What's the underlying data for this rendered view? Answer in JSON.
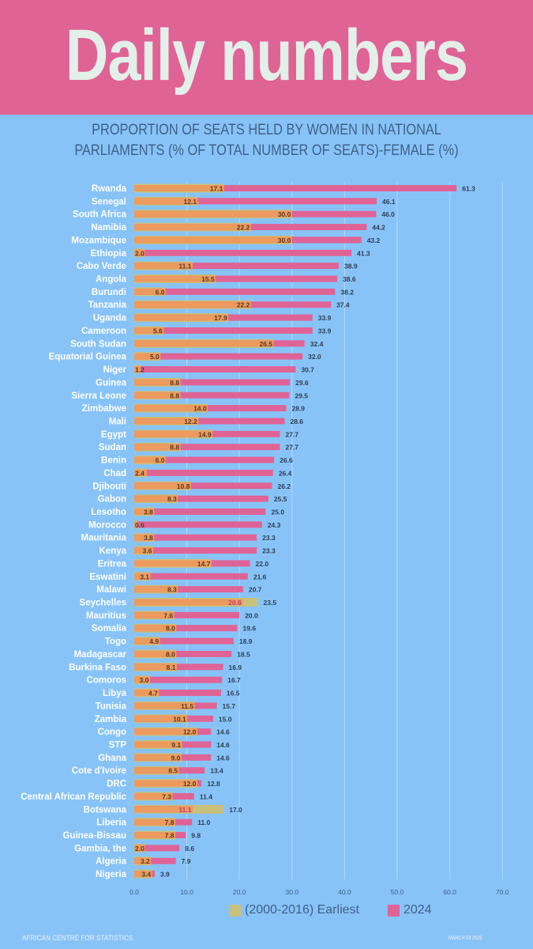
{
  "header": {
    "title": "Daily numbers"
  },
  "colors": {
    "header_bg": "#e06396",
    "background": "#88c3f7",
    "earliest": "#c9c07c",
    "overlap": "#ec9a5e",
    "latest": "#e06396",
    "label_dark": "#2d3e54",
    "country_label": "#ffffff"
  },
  "chart_data": {
    "type": "bar",
    "orientation": "horizontal",
    "title_lines": [
      "Proportion of seats held by women in national",
      "parliaments (% of total number of seats)-Female (%)"
    ],
    "xlabel": "",
    "ylabel": "",
    "xlim": [
      0,
      70
    ],
    "x_ticks": [
      "0.0",
      "10.0",
      "20.0",
      "30.0",
      "40.0",
      "50.0",
      "60.0",
      "70.0"
    ],
    "grid": true,
    "legend_position": "bottom",
    "categories": [
      "Rwanda",
      "Senegal",
      "South Africa",
      "Namibia",
      "Mozambique",
      "Ethiopia",
      "Cabo Verde",
      "Angola",
      "Burundi",
      "Tanzania",
      "Uganda",
      "Cameroon",
      "South Sudan",
      "Equatorial Guinea",
      "Niger",
      "Guinea",
      "Sierra Leone",
      "Zimbabwe",
      "Mali",
      "Egypt",
      "Sudan",
      "Benin",
      "Chad",
      "Djibouti",
      "Gabon",
      "Lesotho",
      "Morocco",
      "Mauritania",
      "Kenya",
      "Eritrea",
      "Eswatini",
      "Malawi",
      "Seychelles",
      "Mauritius",
      "Somalia",
      "Togo",
      "Madagascar",
      "Burkina Faso",
      "Comoros",
      "Libya",
      "Tunisia",
      "Zambia",
      "Congo",
      "STP",
      "Ghana",
      "Cote d'Ivoire",
      "DRC",
      "Central African Republic",
      "Botswana",
      "Liberia",
      "Guinea-Bissau",
      "Gambia, the",
      "Algeria",
      "Nigeria"
    ],
    "series": [
      {
        "name": "(2000-2016) Earliest",
        "values": [
          17.1,
          12.1,
          30.0,
          22.2,
          30.0,
          2.0,
          11.1,
          15.5,
          6.0,
          22.2,
          17.9,
          5.6,
          26.5,
          5.0,
          1.2,
          8.8,
          8.8,
          14.0,
          12.2,
          14.9,
          8.8,
          6.0,
          2.4,
          10.8,
          8.3,
          3.8,
          0.6,
          3.8,
          3.6,
          14.7,
          3.1,
          8.3,
          23.5,
          7.6,
          8.0,
          4.9,
          8.0,
          8.1,
          3.0,
          4.7,
          11.5,
          10.1,
          12.0,
          9.1,
          9.0,
          8.5,
          12.0,
          7.3,
          17.0,
          7.8,
          7.8,
          2.0,
          3.2,
          3.4
        ]
      },
      {
        "name": "2024",
        "values": [
          61.3,
          46.1,
          46.0,
          44.2,
          43.2,
          41.3,
          38.9,
          38.6,
          38.2,
          37.4,
          33.9,
          33.9,
          32.4,
          32.0,
          30.7,
          29.6,
          29.5,
          28.9,
          28.6,
          27.7,
          27.7,
          26.6,
          26.4,
          26.2,
          25.5,
          25.0,
          24.3,
          23.3,
          23.3,
          22.0,
          21.6,
          20.7,
          20.6,
          20.0,
          19.6,
          18.9,
          18.5,
          16.9,
          16.7,
          16.5,
          15.7,
          15.0,
          14.6,
          14.6,
          14.6,
          13.4,
          12.8,
          11.4,
          11.1,
          11.0,
          9.8,
          8.6,
          7.9,
          3.9
        ]
      }
    ]
  },
  "legend": {
    "items": [
      {
        "label": "(2000-2016) Earliest"
      },
      {
        "label": "2024"
      }
    ]
  },
  "footer": {
    "source": "AFRICAN CENTRE FOR STATISTICS",
    "date": "MARCH 03 2025"
  }
}
